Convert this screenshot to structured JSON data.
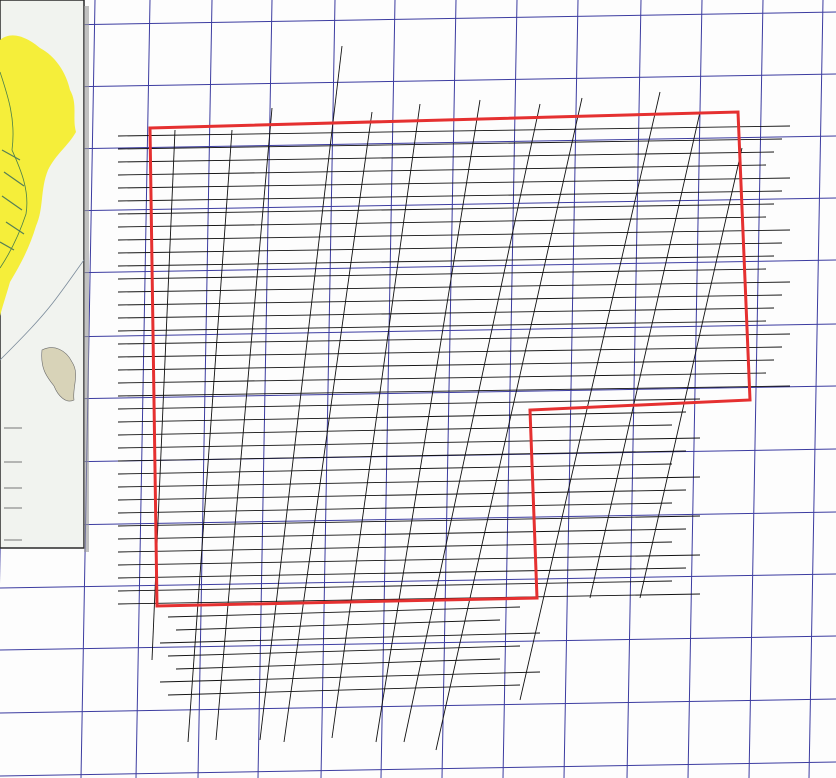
{
  "map": {
    "colors": {
      "background": "#fdfdfd",
      "grid": "#3c3ca0",
      "survey_lines": "#111111",
      "boundary": "#e53030",
      "inset_land": "#f5ee3a",
      "inset_background": "#f1f3ef"
    },
    "layers": [
      "coordinate-grid",
      "survey-line-grid",
      "survey-boundary",
      "location-inset"
    ],
    "inset": {
      "shows": "location-map-with-coastline-and-legend",
      "legend_entries": 4
    }
  }
}
